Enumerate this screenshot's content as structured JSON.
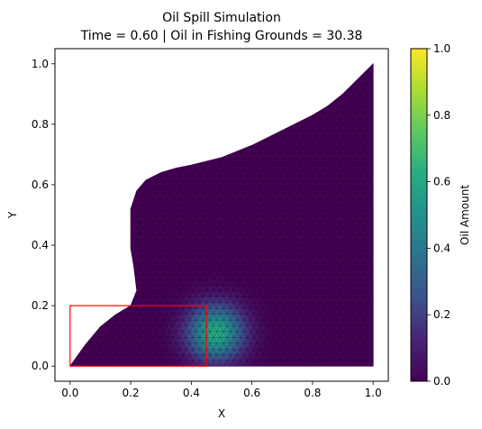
{
  "chart_data": {
    "type": "heatmap",
    "title": "Oil Spill Simulation",
    "subtitle": "Time = 0.60 | Oil in Fishing Grounds = 30.38",
    "xlabel": "X",
    "ylabel": "Y",
    "xlim": [
      -0.05,
      1.05
    ],
    "ylim": [
      -0.05,
      1.05
    ],
    "xticks": [
      {
        "value": 0.0,
        "label": "0.0"
      },
      {
        "value": 0.2,
        "label": "0.2"
      },
      {
        "value": 0.4,
        "label": "0.4"
      },
      {
        "value": 0.6,
        "label": "0.6"
      },
      {
        "value": 0.8,
        "label": "0.8"
      },
      {
        "value": 1.0,
        "label": "1.0"
      }
    ],
    "yticks": [
      {
        "value": 0.0,
        "label": "0.0"
      },
      {
        "value": 0.2,
        "label": "0.2"
      },
      {
        "value": 0.4,
        "label": "0.4"
      },
      {
        "value": 0.6,
        "label": "0.6"
      },
      {
        "value": 0.8,
        "label": "0.8"
      },
      {
        "value": 1.0,
        "label": "1.0"
      }
    ],
    "colorbar": {
      "label": "Oil Amount",
      "colormap": "viridis",
      "range": [
        0.0,
        1.0
      ],
      "ticks": [
        {
          "value": 0.0,
          "label": "0.0"
        },
        {
          "value": 0.2,
          "label": "0.2"
        },
        {
          "value": 0.4,
          "label": "0.4"
        },
        {
          "value": 0.6,
          "label": "0.6"
        },
        {
          "value": 0.8,
          "label": "0.8"
        },
        {
          "value": 1.0,
          "label": "1.0"
        }
      ]
    },
    "oil_peak": {
      "x": 0.48,
      "y": 0.11,
      "value": 0.62,
      "spread": 0.065
    },
    "fishing_grounds": {
      "x0": 0.0,
      "y0": 0.0,
      "x1": 0.45,
      "y1": 0.2,
      "color": "#ff0000"
    },
    "domain_outline": [
      [
        0.0,
        0.0
      ],
      [
        1.0,
        0.0
      ],
      [
        1.0,
        1.0
      ],
      [
        0.95,
        0.95
      ],
      [
        0.9,
        0.9
      ],
      [
        0.85,
        0.86
      ],
      [
        0.8,
        0.83
      ],
      [
        0.7,
        0.78
      ],
      [
        0.6,
        0.73
      ],
      [
        0.5,
        0.69
      ],
      [
        0.4,
        0.665
      ],
      [
        0.35,
        0.655
      ],
      [
        0.3,
        0.64
      ],
      [
        0.25,
        0.615
      ],
      [
        0.22,
        0.58
      ],
      [
        0.2,
        0.52
      ],
      [
        0.2,
        0.45
      ],
      [
        0.2,
        0.39
      ],
      [
        0.21,
        0.33
      ],
      [
        0.22,
        0.25
      ],
      [
        0.2,
        0.2
      ],
      [
        0.15,
        0.17
      ],
      [
        0.1,
        0.13
      ],
      [
        0.05,
        0.07
      ],
      [
        0.0,
        0.0
      ]
    ],
    "grid": false
  }
}
